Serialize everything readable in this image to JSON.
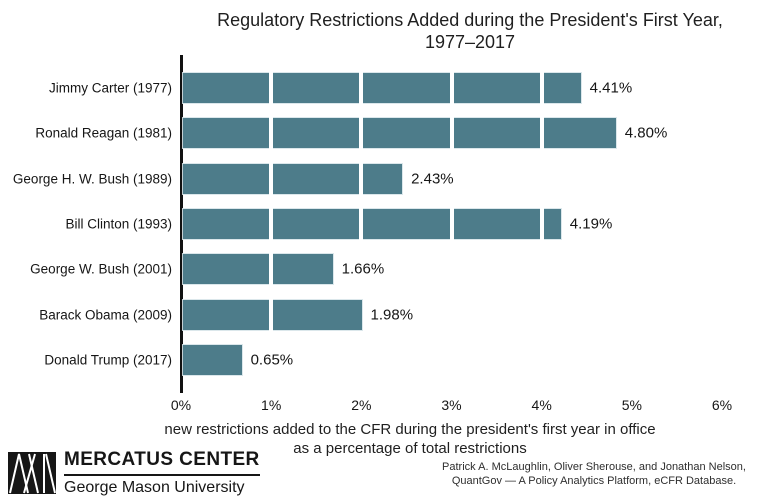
{
  "chart_data": {
    "type": "bar",
    "orientation": "horizontal",
    "title": "Regulatory Restrictions Added during the President's First Year, 1977–2017",
    "title_lines": [
      "Regulatory Restrictions Added during the President's First Year,",
      "1977–2017"
    ],
    "categories": [
      "Jimmy Carter (1977)",
      "Ronald Reagan (1981)",
      "George H. W. Bush (1989)",
      "Bill Clinton (1993)",
      "George W. Bush (2001)",
      "Barack Obama (2009)",
      "Donald Trump (2017)"
    ],
    "values": [
      4.41,
      4.8,
      2.43,
      4.19,
      1.66,
      1.98,
      0.65
    ],
    "value_labels": [
      "4.41%",
      "4.80%",
      "2.43%",
      "4.19%",
      "1.66%",
      "1.98%",
      "0.65%"
    ],
    "x_ticks": [
      "0%",
      "1%",
      "2%",
      "3%",
      "4%",
      "5%",
      "6%"
    ],
    "xlim": [
      0,
      6
    ],
    "xlabel": "new restrictions added to the CFR during the president's first year in office as a percentage of total restrictions",
    "xlabel_lines": [
      "new restrictions added to the CFR during the president's first year in office",
      "as a percentage of total restrictions"
    ],
    "ylabel": "",
    "legend": "none",
    "grid": "vertical gridlines at 1% intervals rendered white over bars",
    "bar_color": "#4d7c8a",
    "gridline_color": "#ffffff",
    "axis_line_color": "#111111"
  },
  "footer": {
    "logo": {
      "mark": "mercatus-m-mark",
      "org_name": "MERCATUS CENTER",
      "university": "George Mason University"
    },
    "credit_lines": [
      "Patrick A. McLaughlin, Oliver Sherouse, and Jonathan Nelson,",
      "QuantGov — A Policy Analytics Platform, eCFR Database."
    ]
  }
}
